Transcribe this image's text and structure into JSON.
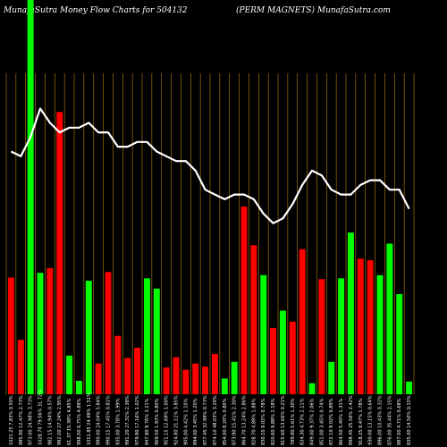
{
  "chart_data": {
    "type": "bar",
    "title": "MunafaSutra  Money Flow  Charts for 504132",
    "subtitle": "(PERM MAGNETS) MunafaSutra.com",
    "grid": true,
    "colors": {
      "up": "#00ff00",
      "down": "#ff0000",
      "line": "#ffffff",
      "grid": "#b8860b",
      "background": "#000000"
    },
    "categories": [
      "1021.25 7.83% 0.50%",
      "985.90 12.47% 2.73%",
      "973.00 24.98% 3.73%",
      "1028.70 79.56% 31.72%",
      "982.15 14.94% 0.57%",
      "992.00 27.24% 2.95%",
      "61.37 15.38% 4.85%",
      "998.00 6.75% 4.88%",
      "1011.85 24.49% 1.51%",
      "990.00 24.04% 5.84%",
      "990.15 17.45% 0.81%",
      "935.00 3.78% 1.99%",
      "991.20 27.31% 2.38%",
      "979.80 17.16% 1.02%",
      "947.80 9.76% 3.21%",
      "969.50 1.93% 0.80%",
      "951.15 12.69% 1.00%",
      "924.80 21.11% 3.85%",
      "905.00 4.42% 1.10%",
      "894.00 3.45% 1.20%",
      "877.45 32.99% 0.73%",
      "874.10 48.03% 3.28%",
      "854.00 8.20% 0.80%",
      "873.90 15.41% 2.30%",
      "864.70 13.24% 2.86%",
      "828.70 4.89% 1.88%",
      "830.10 9.02% 0.78%",
      "820.60 9.88% 2.18%",
      "815.60 13.66% 0.21%",
      "789.80 5.61% 1.30%",
      "834.30 4.73% 2.11%",
      "849.00 9.37% 2.06%",
      "851.00 3.45% 0.74%",
      "872.10 9.02% 0.89%",
      "864.50 5.40% 1.31%",
      "898.45 25.56% 2.42%",
      "918.25 9.47% 1.78%",
      "930.00 13.15% 0.64%",
      "896.00 10.43% 0.32%",
      "876.00 35.44% 2.15%",
      "887.00 4.71% 0.68%",
      "835.00 14.50% 0.15%"
    ],
    "values": [
      148,
      69,
      500,
      154,
      160,
      358,
      49,
      17,
      144,
      39,
      155,
      74,
      46,
      59,
      147,
      134,
      34,
      47,
      31,
      39,
      35,
      51,
      20,
      41,
      238,
      189,
      151,
      84,
      106,
      92,
      184,
      14,
      146,
      41,
      147,
      205,
      172,
      170,
      151,
      191,
      127,
      16
    ],
    "directions": [
      "down",
      "down",
      "up",
      "up",
      "down",
      "down",
      "up",
      "up",
      "up",
      "down",
      "down",
      "down",
      "down",
      "down",
      "up",
      "up",
      "down",
      "down",
      "down",
      "down",
      "down",
      "down",
      "up",
      "up",
      "down",
      "down",
      "up",
      "down",
      "up",
      "down",
      "down",
      "up",
      "down",
      "up",
      "up",
      "up",
      "down",
      "down",
      "up",
      "up",
      "up",
      "up"
    ],
    "line_values": [
      72,
      71,
      75,
      81,
      78,
      76,
      77,
      77,
      78,
      76,
      76,
      73,
      73,
      74,
      74,
      72,
      71,
      70,
      70,
      68,
      64,
      63,
      62,
      63,
      63,
      62,
      59,
      57,
      58,
      61,
      65,
      68,
      67,
      64,
      63,
      63,
      65,
      66,
      66,
      64,
      64,
      60
    ]
  }
}
